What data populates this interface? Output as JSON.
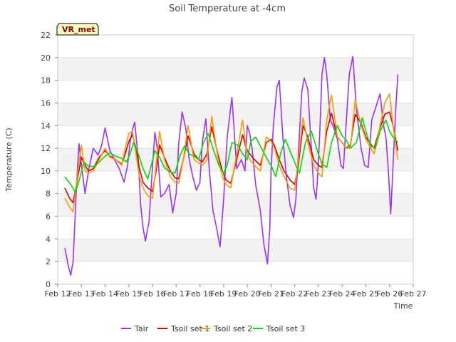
{
  "chart_data": {
    "type": "line",
    "title": "Soil Temperature at -4cm",
    "xlabel": "Time",
    "ylabel": "Temperature (C)",
    "badge": "VR_met",
    "x_ticks": [
      "Feb 12",
      "Feb 13",
      "Feb 14",
      "Feb 15",
      "Feb 16",
      "Feb 17",
      "Feb 18",
      "Feb 19",
      "Feb 20",
      "Feb 21",
      "Feb 22",
      "Feb 23",
      "Feb 24",
      "Feb 25",
      "Feb 26",
      "Feb 27"
    ],
    "xlim": [
      12,
      27
    ],
    "ylim": [
      0,
      22
    ],
    "y_ticks": [
      0,
      2,
      4,
      6,
      8,
      10,
      12,
      14,
      16,
      18,
      20,
      22
    ],
    "grid": "horizontal bands",
    "legend_position": "bottom",
    "series": [
      {
        "name": "Tair",
        "color": "#9b30ff",
        "x": [
          12.3,
          12.45,
          12.55,
          12.65,
          12.8,
          12.9,
          13.0,
          13.15,
          13.3,
          13.5,
          13.7,
          13.85,
          14.0,
          14.2,
          14.4,
          14.6,
          14.8,
          14.95,
          15.05,
          15.15,
          15.25,
          15.4,
          15.5,
          15.6,
          15.7,
          15.85,
          16.0,
          16.1,
          16.2,
          16.35,
          16.5,
          16.7,
          16.85,
          17.0,
          17.1,
          17.25,
          17.4,
          17.55,
          17.7,
          17.85,
          18.0,
          18.1,
          18.25,
          18.4,
          18.55,
          18.7,
          18.85,
          19.0,
          19.15,
          19.35,
          19.55,
          19.75,
          19.9,
          20.0,
          20.1,
          20.2,
          20.35,
          20.55,
          20.7,
          20.85,
          20.95,
          21.0,
          21.1,
          21.25,
          21.35,
          21.5,
          21.65,
          21.8,
          21.95,
          22.05,
          22.15,
          22.3,
          22.4,
          22.55,
          22.7,
          22.8,
          22.9,
          22.95,
          23.05,
          23.15,
          23.25,
          23.35,
          23.5,
          23.65,
          23.8,
          23.95,
          24.05,
          24.15,
          24.3,
          24.45,
          24.6,
          24.8,
          24.95,
          25.1,
          25.25,
          25.4,
          25.6,
          25.75,
          25.85,
          25.95,
          26.05,
          26.15,
          26.25,
          26.35
        ],
        "y": [
          3.2,
          1.6,
          0.8,
          2.0,
          9.0,
          12.4,
          10.5,
          8.0,
          10.0,
          12.0,
          11.4,
          12.2,
          13.8,
          11.8,
          11.0,
          10.2,
          9.0,
          10.5,
          12.5,
          13.6,
          14.3,
          11.0,
          7.0,
          5.0,
          3.8,
          5.5,
          10.5,
          13.4,
          12.0,
          7.7,
          8.0,
          8.8,
          6.3,
          8.0,
          12.3,
          15.2,
          13.8,
          11.0,
          9.5,
          8.3,
          9.0,
          12.5,
          14.6,
          10.0,
          6.5,
          5.0,
          3.3,
          7.5,
          13.0,
          16.5,
          10.2,
          11.0,
          10.0,
          14.0,
          13.3,
          12.0,
          8.8,
          6.5,
          3.5,
          1.8,
          5.0,
          10.0,
          14.0,
          17.4,
          18.0,
          13.0,
          9.5,
          7.0,
          5.9,
          7.5,
          11.5,
          17.0,
          18.2,
          17.2,
          12.0,
          8.5,
          7.5,
          9.0,
          13.0,
          18.5,
          20.0,
          18.5,
          14.5,
          13.8,
          12.8,
          10.5,
          10.2,
          13.5,
          18.5,
          20.1,
          15.5,
          12.0,
          10.5,
          10.3,
          14.5,
          15.5,
          16.8,
          14.0,
          13.0,
          10.0,
          6.2,
          10.5,
          15.0,
          18.5
        ],
        "note": "final segment continues through Feb 26"
      },
      {
        "name": "Tsoil set 1",
        "color": "#dd0000",
        "x": [
          12.3,
          12.5,
          12.65,
          12.85,
          13.0,
          13.15,
          13.3,
          13.5,
          13.75,
          14.0,
          14.2,
          14.45,
          14.7,
          14.85,
          15.0,
          15.15,
          15.3,
          15.45,
          15.6,
          15.8,
          16.0,
          16.15,
          16.3,
          16.5,
          16.75,
          16.95,
          17.1,
          17.3,
          17.5,
          17.75,
          17.95,
          18.1,
          18.3,
          18.5,
          18.75,
          18.95,
          19.1,
          19.3,
          19.55,
          19.8,
          19.95,
          20.1,
          20.3,
          20.55,
          20.8,
          21.0,
          21.15,
          21.35,
          21.55,
          21.8,
          22.0,
          22.15,
          22.35,
          22.55,
          22.8,
          23.0,
          23.15,
          23.35,
          23.55,
          23.8,
          24.0,
          24.15,
          24.35,
          24.55,
          24.8,
          25.0,
          25.15,
          25.35,
          25.55,
          25.8,
          26.0,
          26.15,
          26.35
        ],
        "y": [
          8.5,
          7.6,
          7.2,
          9.5,
          11.2,
          10.5,
          10.0,
          10.2,
          11.2,
          11.8,
          11.3,
          11.0,
          10.6,
          11.5,
          12.6,
          13.2,
          12.0,
          10.2,
          9.0,
          8.5,
          8.2,
          10.0,
          12.3,
          11.2,
          10.0,
          9.4,
          9.3,
          11.0,
          13.1,
          11.5,
          11.0,
          10.8,
          11.5,
          13.9,
          11.5,
          10.0,
          9.2,
          8.9,
          11.0,
          13.2,
          12.0,
          11.5,
          11.0,
          10.5,
          12.5,
          12.8,
          12.2,
          11.0,
          10.0,
          9.2,
          8.8,
          10.5,
          14.0,
          13.0,
          11.0,
          10.5,
          10.3,
          13.5,
          15.1,
          13.0,
          12.5,
          12.0,
          12.3,
          15.0,
          14.2,
          13.0,
          12.5,
          12.0,
          13.5,
          15.0,
          15.2,
          14.0,
          11.8
        ]
      },
      {
        "name": "Tsoil set 2",
        "color": "#ff9900",
        "x": [
          12.3,
          12.5,
          12.65,
          12.85,
          13.0,
          13.15,
          13.3,
          13.5,
          13.75,
          14.0,
          14.2,
          14.45,
          14.7,
          14.85,
          15.0,
          15.15,
          15.3,
          15.45,
          15.6,
          15.8,
          16.0,
          16.15,
          16.3,
          16.5,
          16.75,
          16.95,
          17.1,
          17.3,
          17.5,
          17.75,
          17.95,
          18.1,
          18.3,
          18.5,
          18.75,
          18.95,
          19.1,
          19.3,
          19.55,
          19.8,
          19.95,
          20.1,
          20.3,
          20.55,
          20.8,
          21.0,
          21.15,
          21.35,
          21.55,
          21.8,
          22.0,
          22.15,
          22.35,
          22.55,
          22.8,
          23.0,
          23.15,
          23.35,
          23.55,
          23.8,
          24.0,
          24.15,
          24.35,
          24.55,
          24.8,
          25.0,
          25.15,
          25.35,
          25.55,
          25.8,
          26.0,
          26.15,
          26.35
        ],
        "y": [
          7.6,
          6.8,
          6.4,
          10.0,
          12.3,
          10.0,
          9.8,
          10.0,
          11.0,
          12.0,
          11.2,
          11.0,
          10.5,
          12.0,
          13.3,
          13.5,
          11.5,
          9.5,
          8.5,
          7.8,
          7.6,
          10.5,
          13.5,
          11.0,
          9.5,
          9.0,
          8.9,
          11.0,
          14.0,
          11.0,
          10.7,
          10.5,
          11.0,
          14.8,
          11.2,
          9.5,
          8.8,
          8.5,
          11.5,
          14.5,
          12.0,
          11.0,
          10.5,
          10.0,
          13.0,
          12.6,
          12.0,
          10.5,
          9.5,
          8.5,
          8.3,
          11.0,
          14.7,
          12.5,
          10.5,
          9.8,
          9.5,
          14.5,
          16.7,
          13.0,
          12.5,
          12.0,
          12.0,
          16.3,
          14.0,
          12.8,
          12.2,
          11.5,
          13.5,
          16.0,
          16.8,
          14.0,
          11.0
        ]
      },
      {
        "name": "Tsoil set 3",
        "color": "#00dd00",
        "x": [
          12.3,
          12.55,
          12.75,
          12.95,
          13.1,
          13.3,
          13.55,
          13.8,
          14.0,
          14.2,
          14.45,
          14.7,
          14.9,
          15.05,
          15.2,
          15.4,
          15.6,
          15.8,
          15.95,
          16.1,
          16.3,
          16.5,
          16.75,
          16.95,
          17.15,
          17.35,
          17.55,
          17.75,
          17.95,
          18.15,
          18.35,
          18.55,
          18.8,
          19.0,
          19.15,
          19.35,
          19.6,
          19.8,
          20.0,
          20.15,
          20.35,
          20.6,
          20.85,
          21.0,
          21.2,
          21.4,
          21.6,
          21.85,
          22.05,
          22.2,
          22.45,
          22.7,
          22.95,
          23.15,
          23.35,
          23.55,
          23.8,
          24.0,
          24.15,
          24.35,
          24.6,
          24.85,
          25.0,
          25.2,
          25.4,
          25.6,
          25.85,
          26.0,
          26.15,
          26.35
        ],
        "y": [
          9.5,
          8.8,
          8.1,
          9.5,
          10.8,
          10.4,
          10.4,
          10.9,
          11.3,
          11.6,
          11.3,
          11.1,
          10.8,
          11.5,
          12.5,
          11.5,
          10.2,
          9.3,
          10.5,
          11.8,
          11.2,
          10.3,
          9.9,
          9.8,
          11.3,
          12.2,
          11.5,
          11.3,
          11.0,
          12.5,
          13.3,
          12.0,
          10.5,
          9.8,
          10.5,
          12.5,
          12.3,
          11.5,
          11.0,
          12.6,
          13.0,
          12.0,
          11.0,
          10.5,
          9.5,
          11.5,
          12.8,
          11.5,
          10.5,
          9.8,
          12.5,
          13.5,
          11.8,
          10.6,
          10.3,
          12.5,
          14.0,
          13.1,
          12.8,
          12.0,
          12.5,
          14.7,
          13.5,
          12.2,
          12.0,
          13.5,
          14.5,
          13.5,
          13.0,
          12.5
        ]
      }
    ]
  }
}
